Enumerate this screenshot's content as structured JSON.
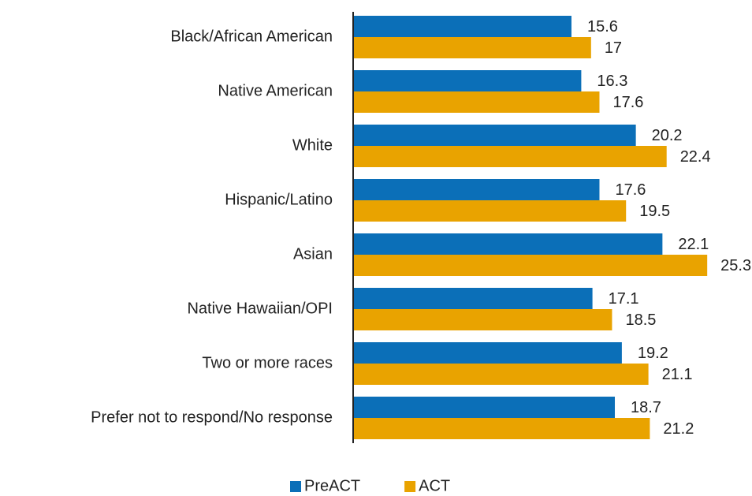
{
  "chart_data": {
    "type": "hbar",
    "categories": [
      "Black/African American",
      "Native American",
      "White",
      "Hispanic/Latino",
      "Asian",
      "Native Hawaiian/OPI",
      "Two or more races",
      "Prefer not to respond/No response"
    ],
    "series": [
      {
        "name": "PreACT",
        "color": "#0b6fb8",
        "values": [
          15.6,
          16.3,
          20.2,
          17.6,
          22.1,
          17.1,
          19.2,
          18.7
        ]
      },
      {
        "name": "ACT",
        "color": "#e9a300",
        "values": [
          17.0,
          17.6,
          22.4,
          19.5,
          25.3,
          18.5,
          21.1,
          21.2
        ]
      }
    ],
    "xlim": [
      0,
      28.5
    ],
    "legend": "bottom"
  }
}
